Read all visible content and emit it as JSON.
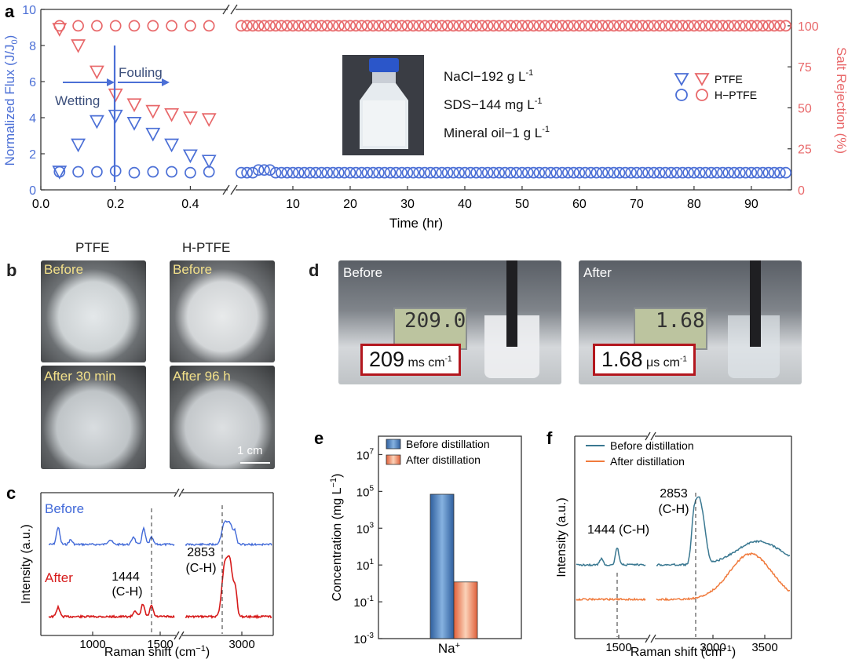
{
  "colors": {
    "blue": "#4b6fd6",
    "red": "#e8686a",
    "spec_blue": "#4169d8",
    "spec_red": "#d61a1a",
    "teal": "#3a7891",
    "orange": "#f07a3c"
  },
  "panel_labels": {
    "a": "a",
    "b": "b",
    "c": "c",
    "d": "d",
    "e": "e",
    "f": "f"
  },
  "panel_a": {
    "ylabel_left": "Normalized Flux (J/J0)",
    "ylabel_right": "Salt Rejection (%)",
    "xlabel": "Time (hr)",
    "legend": {
      "ptfe": "PTFE",
      "hptfe": "H−PTFE"
    },
    "arrows": {
      "wetting": "Wetting",
      "fouling": "Fouling"
    },
    "feed": [
      "NaCl−192 g L",
      "SDS−144 mg L",
      "Mineral oil−1 g L"
    ],
    "feed_sup": "-1",
    "feed_image": "bottle-photo"
  },
  "panel_b": {
    "col_ptfe": "PTFE",
    "col_hptfe": "H-PTFE",
    "labels": [
      "Before",
      "Before",
      "After 30 min",
      "After 96 h"
    ],
    "scale": "1 cm"
  },
  "panel_c": {
    "ylabel": "Intensity (a.u.)",
    "xlabel": "Raman shift (cm−1)",
    "before": "Before",
    "after": "After",
    "peak1": [
      "1444",
      "(C-H)"
    ],
    "peak2": [
      "2853",
      "(C-H)"
    ]
  },
  "panel_d": {
    "before": "Before",
    "after": "After",
    "before_value": "209",
    "before_unit": "ms cm",
    "after_value": "1.68",
    "after_unit": "μs cm",
    "unit_sup": "-1",
    "display_before": "209.0",
    "display_after": "1.68"
  },
  "panel_e": {
    "ylabel": "Concentration (mg L−1)",
    "legend_before": "Before distillation",
    "legend_after": "After distillation",
    "xcat": "Na+"
  },
  "panel_f": {
    "ylabel": "Intensity (a.u.)",
    "xlabel": "Raman shift (cm−1)",
    "legend_before": "Before distillation",
    "legend_after": "After distillation",
    "peak1": "1444 (C-H)",
    "peak2": [
      "2853",
      "(C-H)"
    ]
  },
  "chart_data": [
    {
      "id": "a",
      "type": "scatter",
      "xlabel": "Time (hr)",
      "ylabel": "Normalized Flux (J/J0)",
      "y2label": "Salt Rejection (%)",
      "ylim": [
        0,
        10
      ],
      "y2lim": [
        0,
        110
      ],
      "xlim_segment1": [
        0,
        0.5
      ],
      "xlim_segment2": [
        0,
        97
      ],
      "x_ticks_segment1": [
        0.0,
        0.2,
        0.4
      ],
      "x_ticks_segment2": [
        10,
        20,
        30,
        40,
        50,
        60,
        70,
        80,
        90
      ],
      "y_ticks": [
        0,
        2,
        4,
        6,
        8,
        10
      ],
      "y2_ticks": [
        0,
        25,
        50,
        75,
        100
      ],
      "series": [
        {
          "name": "PTFE flux",
          "axis": "left",
          "marker": "triangle",
          "color": "blue",
          "x": [
            0.05,
            0.1,
            0.15,
            0.2,
            0.25,
            0.3,
            0.35,
            0.4,
            0.45
          ],
          "y": [
            1.0,
            2.5,
            3.8,
            4.1,
            3.7,
            3.1,
            2.5,
            1.9,
            1.6
          ]
        },
        {
          "name": "PTFE rejection",
          "axis": "right",
          "marker": "triangle",
          "color": "red",
          "x": [
            0.05,
            0.1,
            0.15,
            0.2,
            0.25,
            0.3,
            0.35,
            0.4,
            0.45
          ],
          "y": [
            98,
            88,
            72,
            58,
            52,
            48,
            46,
            44,
            43
          ]
        },
        {
          "name": "H-PTFE flux",
          "axis": "left",
          "marker": "circle",
          "color": "blue",
          "x": [
            0.05,
            0.1,
            0.15,
            0.2,
            0.25,
            0.3,
            0.35,
            0.4,
            0.45
          ],
          "y": [
            1.0,
            1.0,
            1.0,
            1.05,
            0.95,
            1.0,
            1.0,
            0.95,
            1.0
          ],
          "x_long_start": 1,
          "x_long_end": 96,
          "x_long_step": 1,
          "y_long": 0.95
        },
        {
          "name": "H-PTFE rejection",
          "axis": "right",
          "marker": "circle",
          "color": "red",
          "x": [
            0.05,
            0.1,
            0.15,
            0.2,
            0.25,
            0.3,
            0.35,
            0.4,
            0.45
          ],
          "y": [
            100,
            100,
            100,
            100,
            100,
            100,
            100,
            100,
            100
          ],
          "x_long_start": 1,
          "x_long_end": 96,
          "x_long_step": 1,
          "y_long": 100
        }
      ]
    },
    {
      "id": "c",
      "type": "line",
      "xlabel": "Raman shift (cm−1)",
      "ylabel": "Intensity (a.u.)",
      "x_ticks": [
        1000,
        1500,
        3000
      ],
      "break": true,
      "series": [
        {
          "name": "Before",
          "color": "spec_blue"
        },
        {
          "name": "After",
          "color": "spec_red"
        }
      ],
      "annotations": [
        {
          "x": 1444,
          "text": "1444 (C-H)"
        },
        {
          "x": 2853,
          "text": "2853 (C-H)"
        }
      ]
    },
    {
      "id": "e",
      "type": "bar",
      "yscale": "log",
      "ylabel": "Concentration (mg L−1)",
      "ylim": [
        0.001,
        100000000
      ],
      "y_ticks": [
        "10^7",
        "10^5",
        "10^3",
        "10^1",
        "10^-1",
        "10^-3"
      ],
      "y_tick_bases": [
        "10",
        "10",
        "10",
        "10",
        "10",
        "10"
      ],
      "y_tick_exps": [
        "7",
        "5",
        "3",
        "1",
        "-1",
        "-3"
      ],
      "categories": [
        "Na+"
      ],
      "series": [
        {
          "name": "Before distillation",
          "values": [
            70000
          ]
        },
        {
          "name": "After distillation",
          "values": [
            1.2
          ]
        }
      ]
    },
    {
      "id": "f",
      "type": "line",
      "xlabel": "Raman shift (cm−1)",
      "ylabel": "Intensity (a.u.)",
      "x_ticks": [
        1500,
        3000,
        3500
      ],
      "break": true,
      "series": [
        {
          "name": "Before distillation",
          "color": "teal"
        },
        {
          "name": "After distillation",
          "color": "orange"
        }
      ],
      "annotations": [
        {
          "x": 1444,
          "text": "1444 (C-H)"
        },
        {
          "x": 2853,
          "text": "2853 (C-H)"
        }
      ]
    }
  ]
}
